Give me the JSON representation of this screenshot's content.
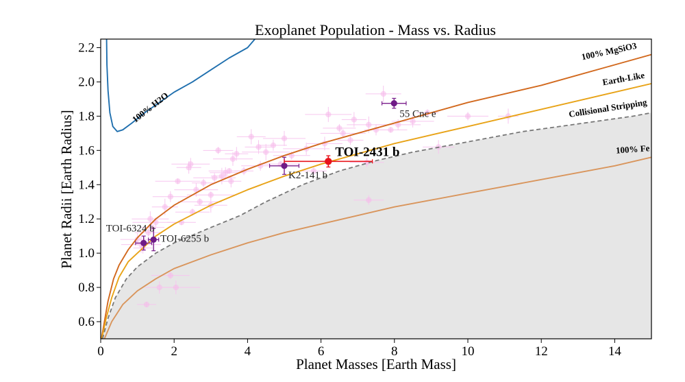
{
  "chart_data": {
    "type": "scatter",
    "title": "Exoplanet Population - Mass vs. Radius",
    "xlabel": "Planet Masses [Earth Mass]",
    "ylabel": "Planet Radii [Earth Radius]",
    "xlim": [
      0,
      15
    ],
    "ylim": [
      0.5,
      2.25
    ],
    "xticks": [
      0,
      2,
      4,
      6,
      8,
      10,
      12,
      14
    ],
    "yticks": [
      0.6,
      0.8,
      1.0,
      1.2,
      1.4,
      1.6,
      1.8,
      2.0,
      2.2
    ],
    "curves": [
      {
        "name": "100% H2O",
        "label": "100% H2O",
        "color": "#1f6fae",
        "dashed": false,
        "points": [
          [
            0.16,
            2.25
          ],
          [
            0.17,
            2.1
          ],
          [
            0.2,
            1.95
          ],
          [
            0.25,
            1.82
          ],
          [
            0.33,
            1.74
          ],
          [
            0.45,
            1.71
          ],
          [
            0.6,
            1.72
          ],
          [
            0.85,
            1.76
          ],
          [
            1.2,
            1.82
          ],
          [
            1.6,
            1.88
          ],
          [
            2.0,
            1.94
          ],
          [
            2.5,
            2.0
          ],
          [
            3.0,
            2.07
          ],
          [
            3.5,
            2.14
          ],
          [
            4.0,
            2.2
          ],
          [
            4.2,
            2.25
          ]
        ]
      },
      {
        "name": "100% MgSiO3",
        "label": "100% MgSiO3",
        "color": "#d2691e",
        "dashed": false,
        "points": [
          [
            0.02,
            0.5
          ],
          [
            0.1,
            0.6
          ],
          [
            0.2,
            0.72
          ],
          [
            0.35,
            0.85
          ],
          [
            0.5,
            0.93
          ],
          [
            0.75,
            1.02
          ],
          [
            1.0,
            1.09
          ],
          [
            1.5,
            1.2
          ],
          [
            2.0,
            1.28
          ],
          [
            3.0,
            1.4
          ],
          [
            4.0,
            1.49
          ],
          [
            5.0,
            1.57
          ],
          [
            6.0,
            1.64
          ],
          [
            7.0,
            1.7
          ],
          [
            8.0,
            1.76
          ],
          [
            9.0,
            1.82
          ],
          [
            10.0,
            1.88
          ],
          [
            11.0,
            1.93
          ],
          [
            12.0,
            1.98
          ],
          [
            13.0,
            2.04
          ],
          [
            14.0,
            2.1
          ],
          [
            15.0,
            2.16
          ]
        ]
      },
      {
        "name": "Earth-Like",
        "label": "Earth-Like",
        "color": "#e8a317",
        "dashed": false,
        "points": [
          [
            0.03,
            0.5
          ],
          [
            0.15,
            0.62
          ],
          [
            0.3,
            0.74
          ],
          [
            0.5,
            0.86
          ],
          [
            0.75,
            0.95
          ],
          [
            1.0,
            1.0
          ],
          [
            1.5,
            1.1
          ],
          [
            2.0,
            1.17
          ],
          [
            3.0,
            1.28
          ],
          [
            4.0,
            1.37
          ],
          [
            5.0,
            1.45
          ],
          [
            6.0,
            1.52
          ],
          [
            7.0,
            1.58
          ],
          [
            8.0,
            1.64
          ],
          [
            9.0,
            1.69
          ],
          [
            10.0,
            1.74
          ],
          [
            11.0,
            1.79
          ],
          [
            12.0,
            1.84
          ],
          [
            13.0,
            1.89
          ],
          [
            14.0,
            1.94
          ],
          [
            15.0,
            1.99
          ]
        ]
      },
      {
        "name": "Collisional Stripping",
        "label": "Collisional Stripping",
        "color": "#777777",
        "dashed": true,
        "points": [
          [
            0.05,
            0.5
          ],
          [
            0.2,
            0.62
          ],
          [
            0.4,
            0.74
          ],
          [
            0.7,
            0.85
          ],
          [
            1.0,
            0.92
          ],
          [
            1.5,
            1.0
          ],
          [
            2.0,
            1.06
          ],
          [
            3.0,
            1.15
          ],
          [
            3.8,
            1.22
          ],
          [
            4.5,
            1.3
          ],
          [
            5.5,
            1.4
          ],
          [
            6.5,
            1.48
          ],
          [
            7.5,
            1.54
          ],
          [
            8.5,
            1.59
          ],
          [
            9.5,
            1.63
          ],
          [
            10.5,
            1.67
          ],
          [
            11.5,
            1.71
          ],
          [
            12.5,
            1.74
          ],
          [
            13.5,
            1.77
          ],
          [
            14.5,
            1.8
          ],
          [
            15.0,
            1.82
          ]
        ]
      },
      {
        "name": "100% Fe",
        "label": "100% Fe",
        "color": "#d9955c",
        "dashed": false,
        "points": [
          [
            0.1,
            0.5
          ],
          [
            0.3,
            0.6
          ],
          [
            0.6,
            0.7
          ],
          [
            1.0,
            0.78
          ],
          [
            1.5,
            0.85
          ],
          [
            2.0,
            0.91
          ],
          [
            3.0,
            0.99
          ],
          [
            4.0,
            1.06
          ],
          [
            5.0,
            1.12
          ],
          [
            6.0,
            1.17
          ],
          [
            7.0,
            1.22
          ],
          [
            8.0,
            1.27
          ],
          [
            9.0,
            1.31
          ],
          [
            10.0,
            1.35
          ],
          [
            11.0,
            1.39
          ],
          [
            12.0,
            1.43
          ],
          [
            13.0,
            1.47
          ],
          [
            14.0,
            1.51
          ],
          [
            15.0,
            1.56
          ]
        ]
      }
    ],
    "highlight": {
      "name": "TOI-2431 b",
      "mass": 6.2,
      "mass_err_low": 1.2,
      "mass_err_high": 1.2,
      "radius": 1.536,
      "radius_err": 0.033,
      "color": "#e8141b"
    },
    "labeled_planets": [
      {
        "name": "55 Cnc e",
        "mass": 7.99,
        "mass_err": 0.33,
        "radius": 1.875,
        "radius_err": 0.029
      },
      {
        "name": "K2-141 b",
        "mass": 5.0,
        "mass_err": 0.4,
        "radius": 1.51,
        "radius_err": 0.05
      },
      {
        "name": "TOI-6324 b",
        "mass": 1.17,
        "mass_err": 0.22,
        "radius": 1.059,
        "radius_err": 0.041
      },
      {
        "name": "TOI-6255 b",
        "mass": 1.44,
        "mass_err": 0.14,
        "radius": 1.079,
        "radius_err": 0.065
      }
    ],
    "background_points": [
      [
        1.25,
        0.7
      ],
      [
        1.6,
        0.8
      ],
      [
        1.9,
        0.87
      ],
      [
        2.05,
        0.8
      ],
      [
        1.3,
        1.12
      ],
      [
        1.35,
        1.2
      ],
      [
        1.5,
        1.18
      ],
      [
        1.75,
        1.27
      ],
      [
        1.9,
        1.33
      ],
      [
        2.1,
        1.42
      ],
      [
        2.4,
        1.5
      ],
      [
        2.5,
        1.24
      ],
      [
        2.6,
        1.37
      ],
      [
        2.8,
        1.41
      ],
      [
        3.0,
        1.28
      ],
      [
        3.1,
        1.44
      ],
      [
        3.3,
        1.45
      ],
      [
        3.4,
        1.47
      ],
      [
        3.5,
        1.48
      ],
      [
        3.55,
        1.42
      ],
      [
        3.2,
        1.6
      ],
      [
        3.6,
        1.55
      ],
      [
        3.9,
        1.48
      ],
      [
        4.1,
        1.68
      ],
      [
        4.35,
        1.51
      ],
      [
        4.5,
        1.59
      ],
      [
        4.7,
        1.63
      ],
      [
        4.9,
        1.52
      ],
      [
        5.6,
        1.61
      ],
      [
        5.8,
        1.48
      ],
      [
        6.1,
        1.64
      ],
      [
        6.6,
        1.7
      ],
      [
        6.9,
        1.78
      ],
      [
        7.25,
        1.53
      ],
      [
        7.3,
        1.75
      ],
      [
        7.5,
        1.72
      ],
      [
        7.9,
        1.72
      ],
      [
        8.5,
        1.77
      ],
      [
        8.9,
        1.82
      ],
      [
        9.2,
        1.62
      ],
      [
        10.0,
        1.8
      ],
      [
        11.1,
        1.8
      ],
      [
        7.3,
        1.31
      ],
      [
        1.1,
        1.05
      ],
      [
        1.15,
        1.03
      ],
      [
        2.2,
        1.18
      ],
      [
        2.45,
        1.52
      ],
      [
        3.0,
        1.34
      ],
      [
        4.3,
        1.62
      ],
      [
        5.2,
        1.57
      ],
      [
        6.2,
        1.81
      ],
      [
        6.8,
        1.66
      ],
      [
        7.7,
        1.93
      ],
      [
        8.1,
        1.75
      ],
      [
        1.4,
        1.15
      ],
      [
        1.0,
        1.08
      ],
      [
        2.7,
        1.3
      ],
      [
        3.7,
        1.58
      ],
      [
        6.5,
        1.73
      ],
      [
        5.0,
        1.67
      ]
    ]
  }
}
